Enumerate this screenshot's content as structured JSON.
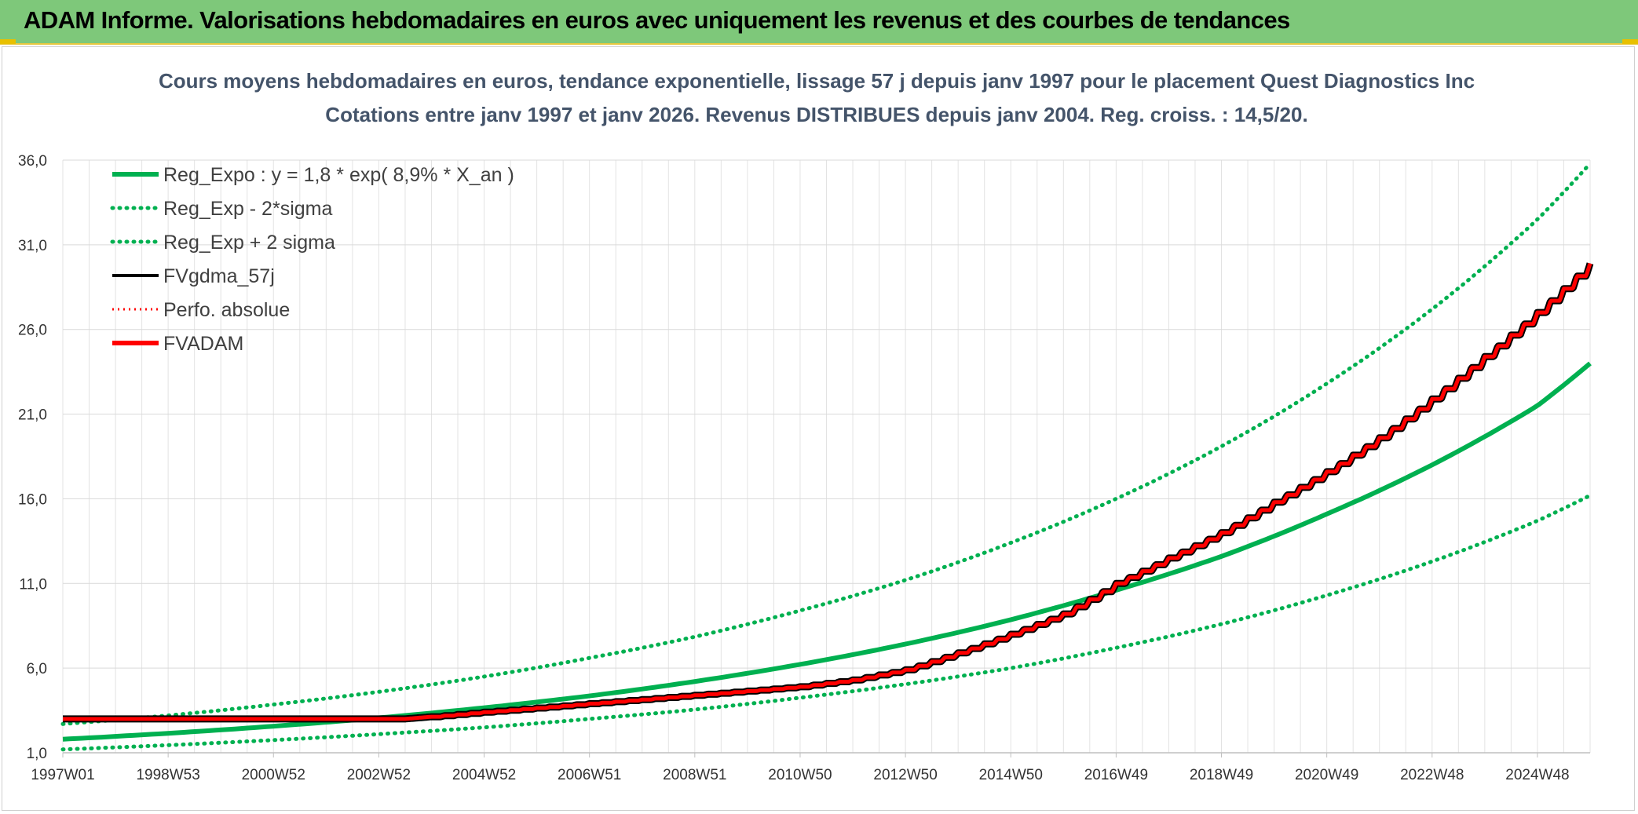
{
  "header": {
    "title": "ADAM Informe. Valorisations hebdomadaires en euros avec uniquement les revenus et des courbes de tendances"
  },
  "colors": {
    "header_bg": "#7ec87a",
    "green": "#00b050",
    "red": "#ff0000",
    "black": "#000000",
    "title": "#44546a"
  },
  "chart_data": {
    "type": "line",
    "title": "Cours moyens hebdomadaires en euros, tendance exponentielle, lissage 57 j depuis janv 1997 pour le placement Quest Diagnostics Inc",
    "subtitle": "Cotations entre janv 1997 et janv 2026. Revenus DISTRIBUES depuis janv 2004. Reg. croiss. : 14,5/20.",
    "xlabel": "",
    "ylabel": "",
    "xlim": [
      1997.0,
      2026.0
    ],
    "ylim": [
      1.0,
      36.0
    ],
    "y_ticks": [
      1.0,
      6.0,
      11.0,
      16.0,
      21.0,
      26.0,
      31.0,
      36.0
    ],
    "y_tick_labels": [
      "1,0",
      "6,0",
      "11,0",
      "16,0",
      "21,0",
      "26,0",
      "31,0",
      "36,0"
    ],
    "x_ticks": [
      {
        "label": "1997W01",
        "value": 1997.0
      },
      {
        "label": "1998W53",
        "value": 1999.0
      },
      {
        "label": "2000W52",
        "value": 2001.0
      },
      {
        "label": "2002W52",
        "value": 2003.0
      },
      {
        "label": "2004W52",
        "value": 2005.0
      },
      {
        "label": "2006W51",
        "value": 2007.0
      },
      {
        "label": "2008W51",
        "value": 2009.0
      },
      {
        "label": "2010W50",
        "value": 2011.0
      },
      {
        "label": "2012W50",
        "value": 2013.0
      },
      {
        "label": "2014W50",
        "value": 2015.0
      },
      {
        "label": "2016W49",
        "value": 2017.0
      },
      {
        "label": "2018W49",
        "value": 2019.0
      },
      {
        "label": "2020W49",
        "value": 2021.0
      },
      {
        "label": "2022W48",
        "value": 2023.0
      },
      {
        "label": "2024W48",
        "value": 2025.0
      }
    ],
    "grid": true,
    "legend_position": "top-left",
    "series": [
      {
        "name": "Reg_Expo : y = 1,8 * exp( 8,9% *  X_an )",
        "color": "#00b050",
        "style": "solid",
        "x": [
          1997,
          1999,
          2001,
          2003,
          2005,
          2007,
          2009,
          2011,
          2013,
          2015,
          2017,
          2019,
          2021,
          2023,
          2025,
          2026
        ],
        "values": [
          1.8,
          2.15,
          2.57,
          3.06,
          3.66,
          4.36,
          5.21,
          6.22,
          7.42,
          8.86,
          10.6,
          12.6,
          15.1,
          18.0,
          21.5,
          24.0
        ]
      },
      {
        "name": "Reg_Exp - 2*sigma",
        "color": "#00b050",
        "style": "dotted",
        "x": [
          1997,
          1999,
          2001,
          2003,
          2005,
          2007,
          2009,
          2011,
          2013,
          2015,
          2017,
          2019,
          2021,
          2023,
          2025,
          2026
        ],
        "values": [
          1.2,
          1.45,
          1.75,
          2.1,
          2.5,
          3.0,
          3.55,
          4.25,
          5.05,
          6.0,
          7.2,
          8.6,
          10.3,
          12.3,
          14.7,
          16.2
        ]
      },
      {
        "name": "Reg_Exp + 2 sigma",
        "color": "#00b050",
        "style": "dotted",
        "x": [
          1997,
          1999,
          2001,
          2003,
          2005,
          2007,
          2009,
          2011,
          2013,
          2015,
          2017,
          2019,
          2021,
          2023,
          2025,
          2026
        ],
        "values": [
          2.7,
          3.2,
          3.85,
          4.6,
          5.5,
          6.6,
          7.85,
          9.4,
          11.2,
          13.4,
          16.0,
          19.1,
          22.8,
          27.2,
          32.5,
          35.8
        ]
      },
      {
        "name": "FVgdma_57j",
        "color": "#000000",
        "style": "solid",
        "x": [
          1997,
          2003.5,
          2005,
          2007,
          2009,
          2011,
          2012,
          2013,
          2014,
          2015,
          2016,
          2017,
          2018,
          2019,
          2020,
          2021,
          2022,
          2023,
          2024,
          2025,
          2026
        ],
        "values": [
          3.0,
          3.0,
          3.4,
          3.9,
          4.4,
          4.9,
          5.3,
          5.9,
          6.9,
          8.0,
          9.2,
          11.0,
          12.5,
          14.0,
          15.8,
          17.6,
          19.6,
          21.9,
          24.4,
          27.0,
          29.9
        ]
      },
      {
        "name": "Perfo. absolue",
        "color": "#ff0000",
        "style": "dotted",
        "x": [
          1997,
          2003.5,
          2005,
          2007,
          2009,
          2011,
          2012,
          2013,
          2014,
          2015,
          2016,
          2017,
          2018,
          2019,
          2020,
          2021,
          2022,
          2023,
          2024,
          2025,
          2026
        ],
        "values": [
          3.0,
          3.0,
          3.4,
          3.9,
          4.4,
          4.9,
          5.3,
          5.9,
          6.9,
          8.0,
          9.2,
          11.0,
          12.5,
          14.0,
          15.8,
          17.6,
          19.6,
          21.9,
          24.4,
          27.0,
          29.9
        ]
      },
      {
        "name": "FVADAM",
        "color": "#ff0000",
        "style": "solid",
        "x": [
          1997,
          2003.5,
          2005,
          2007,
          2009,
          2011,
          2012,
          2013,
          2014,
          2015,
          2016,
          2017,
          2018,
          2019,
          2020,
          2021,
          2022,
          2023,
          2024,
          2025,
          2026
        ],
        "values": [
          3.0,
          3.0,
          3.4,
          3.9,
          4.4,
          4.9,
          5.3,
          5.9,
          6.9,
          8.0,
          9.2,
          11.0,
          12.5,
          14.0,
          15.8,
          17.6,
          19.6,
          21.9,
          24.4,
          27.0,
          29.9
        ]
      }
    ]
  }
}
